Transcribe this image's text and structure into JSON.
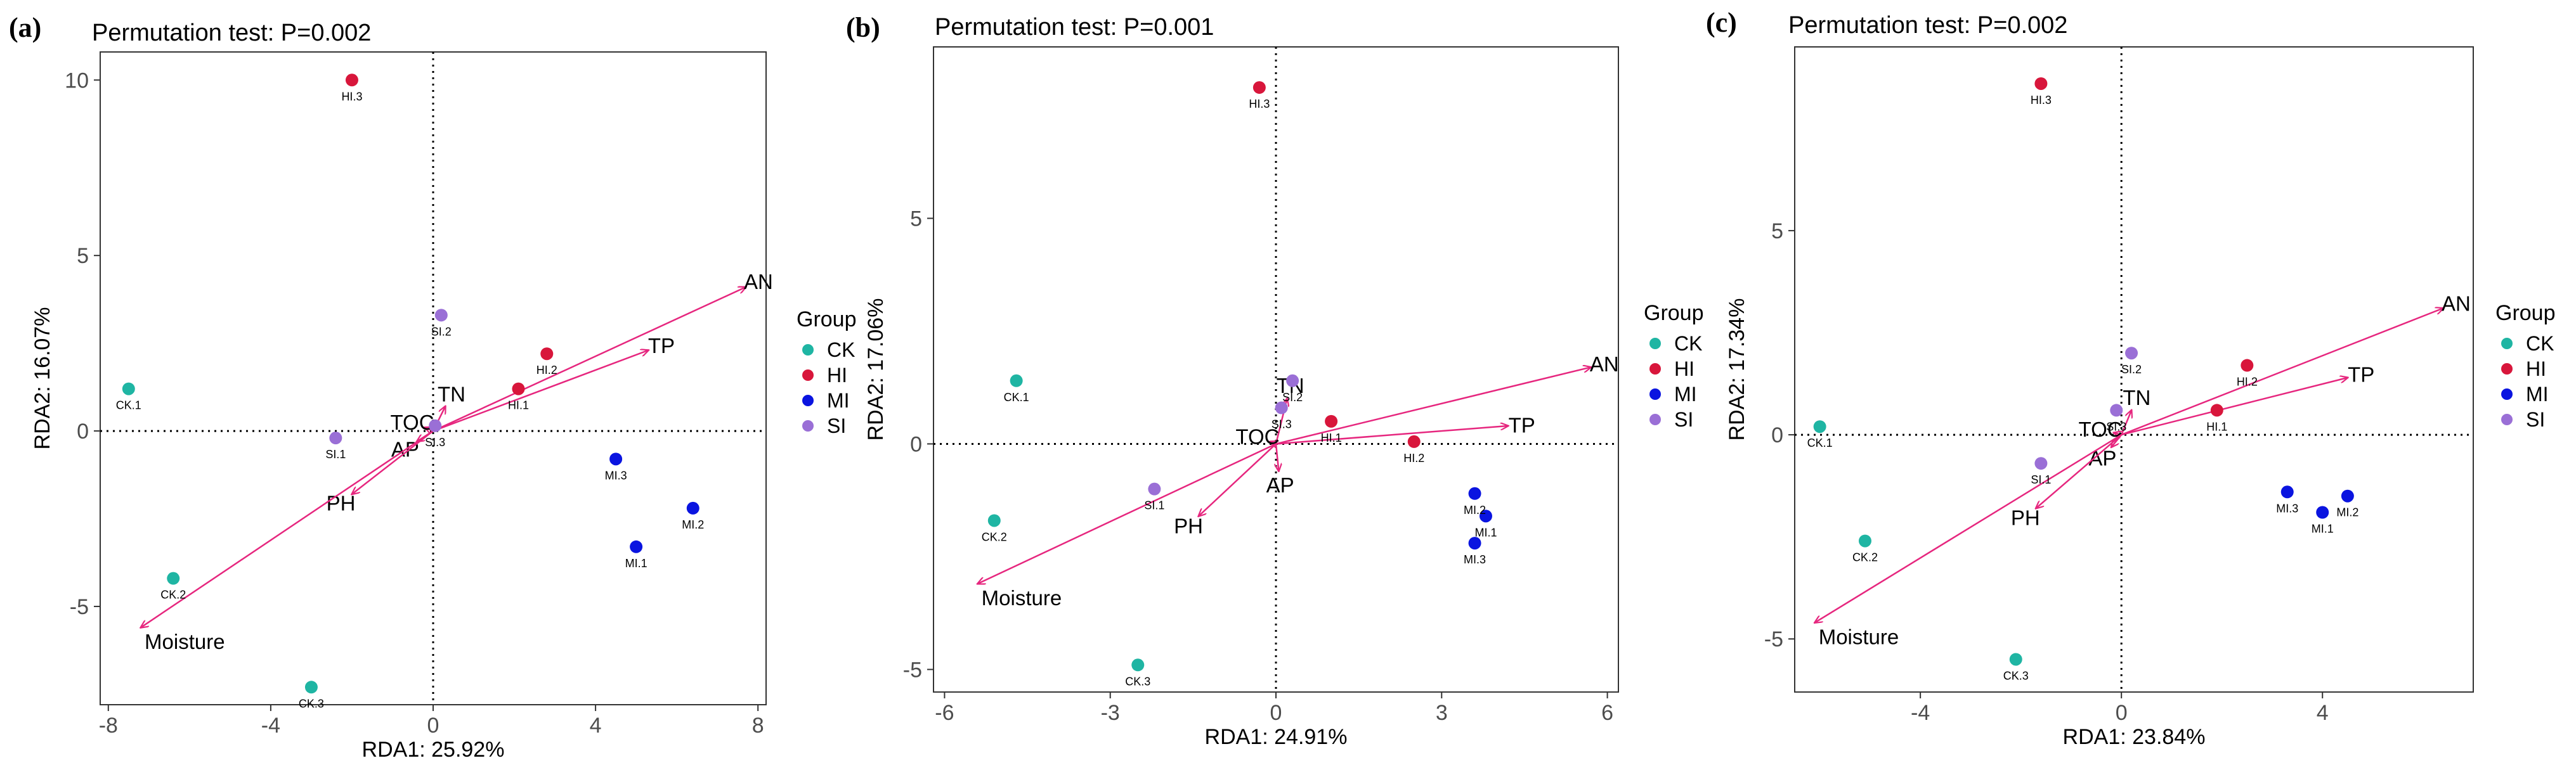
{
  "chart_data": [
    {
      "type": "scatter",
      "panel_label": "(a)",
      "title": "Permutation test: P=0.002",
      "xlabel": "RDA1: 25.92%",
      "ylabel": "RDA2: 16.07%",
      "xlim": [
        -8.2,
        8.2
      ],
      "ylim": [
        -7.8,
        10.8
      ],
      "xticks": [
        -8,
        -4,
        0,
        4,
        8
      ],
      "yticks": [
        -5,
        0,
        5,
        10
      ],
      "grid": false,
      "reference_lines": "dotted lines at x=0 and y=0",
      "legend_position": "right",
      "legend_title": "Group",
      "groups": [
        {
          "name": "CK",
          "color": "#1fb5a3"
        },
        {
          "name": "HI",
          "color": "#d8163b"
        },
        {
          "name": "MI",
          "color": "#0a14e0"
        },
        {
          "name": "SI",
          "color": "#9a6fd6"
        }
      ],
      "points": [
        {
          "label": "CK.1",
          "group": "CK",
          "x": -7.5,
          "y": 1.2
        },
        {
          "label": "CK.2",
          "group": "CK",
          "x": -6.4,
          "y": -4.2
        },
        {
          "label": "CK.3",
          "group": "CK",
          "x": -3.0,
          "y": -7.3
        },
        {
          "label": "HI.1",
          "group": "HI",
          "x": 2.1,
          "y": 1.2
        },
        {
          "label": "HI.2",
          "group": "HI",
          "x": 2.8,
          "y": 2.2
        },
        {
          "label": "HI.3",
          "group": "HI",
          "x": -2.0,
          "y": 10.0
        },
        {
          "label": "MI.1",
          "group": "MI",
          "x": 5.0,
          "y": -3.3
        },
        {
          "label": "MI.2",
          "group": "MI",
          "x": 6.4,
          "y": -2.2
        },
        {
          "label": "MI.3",
          "group": "MI",
          "x": 4.5,
          "y": -0.8
        },
        {
          "label": "SI.1",
          "group": "SI",
          "x": -2.4,
          "y": -0.2
        },
        {
          "label": "SI.2",
          "group": "SI",
          "x": 0.2,
          "y": 3.3
        },
        {
          "label": "SI.3",
          "group": "SI",
          "x": 0.05,
          "y": 0.15
        }
      ],
      "arrows": [
        {
          "label": "AN",
          "x": 7.7,
          "y": 4.1
        },
        {
          "label": "TP",
          "x": 5.3,
          "y": 2.3
        },
        {
          "label": "TN",
          "x": 0.3,
          "y": 0.7
        },
        {
          "label": "TOC",
          "x": -0.2,
          "y": 0.1
        },
        {
          "label": "AP",
          "x": -0.4,
          "y": -0.3
        },
        {
          "label": "PH",
          "x": -2.0,
          "y": -1.8
        },
        {
          "label": "Moisture",
          "x": -7.2,
          "y": -5.6
        }
      ]
    },
    {
      "type": "scatter",
      "panel_label": "(b)",
      "title": "Permutation test: P=0.001",
      "xlabel": "RDA1: 24.91%",
      "ylabel": "RDA2: 17.06%",
      "xlim": [
        -6.2,
        6.2
      ],
      "ylim": [
        -5.5,
        8.8
      ],
      "xticks": [
        -6,
        -3,
        0,
        3,
        6
      ],
      "yticks": [
        -5,
        0,
        5
      ],
      "grid": false,
      "reference_lines": "dotted lines at x=0 and y=0",
      "legend_position": "right",
      "legend_title": "Group",
      "groups": [
        {
          "name": "CK",
          "color": "#1fb5a3"
        },
        {
          "name": "HI",
          "color": "#d8163b"
        },
        {
          "name": "MI",
          "color": "#0a14e0"
        },
        {
          "name": "SI",
          "color": "#9a6fd6"
        }
      ],
      "points": [
        {
          "label": "CK.1",
          "group": "CK",
          "x": -4.7,
          "y": 1.4
        },
        {
          "label": "CK.2",
          "group": "CK",
          "x": -5.1,
          "y": -1.7
        },
        {
          "label": "CK.3",
          "group": "CK",
          "x": -2.5,
          "y": -4.9
        },
        {
          "label": "HI.1",
          "group": "HI",
          "x": 1.0,
          "y": 0.5
        },
        {
          "label": "HI.2",
          "group": "HI",
          "x": 2.5,
          "y": 0.05
        },
        {
          "label": "HI.3",
          "group": "HI",
          "x": -0.3,
          "y": 7.9
        },
        {
          "label": "MI.1",
          "group": "MI",
          "x": 3.8,
          "y": -1.6
        },
        {
          "label": "MI.2",
          "group": "MI",
          "x": 3.6,
          "y": -1.1
        },
        {
          "label": "MI.3",
          "group": "MI",
          "x": 3.6,
          "y": -2.2
        },
        {
          "label": "SI.1",
          "group": "SI",
          "x": -2.2,
          "y": -1.0
        },
        {
          "label": "SI.2",
          "group": "SI",
          "x": 0.3,
          "y": 1.4
        },
        {
          "label": "SI.3",
          "group": "SI",
          "x": 0.1,
          "y": 0.8
        }
      ],
      "arrows": [
        {
          "label": "AN",
          "x": 5.7,
          "y": 1.7
        },
        {
          "label": "TP",
          "x": 4.2,
          "y": 0.4
        },
        {
          "label": "TN",
          "x": 0.2,
          "y": 1.0
        },
        {
          "label": "TOC",
          "x": -0.1,
          "y": 0.05
        },
        {
          "label": "AP",
          "x": 0.05,
          "y": -0.6
        },
        {
          "label": "PH",
          "x": -1.4,
          "y": -1.6
        },
        {
          "label": "Moisture",
          "x": -5.4,
          "y": -3.1
        }
      ]
    },
    {
      "type": "scatter",
      "panel_label": "(c)",
      "title": "Permutation test: P=0.002",
      "xlabel": "RDA1: 23.84%",
      "ylabel": "RDA2: 17.34%",
      "xlim": [
        -6.5,
        7.0
      ],
      "ylim": [
        -6.3,
        9.5
      ],
      "xticks": [
        -4,
        0,
        4
      ],
      "yticks": [
        -5,
        0,
        5
      ],
      "grid": false,
      "reference_lines": "dotted lines at x=0 and y=0",
      "legend_position": "right",
      "legend_title": "Group",
      "groups": [
        {
          "name": "CK",
          "color": "#1fb5a3"
        },
        {
          "name": "HI",
          "color": "#d8163b"
        },
        {
          "name": "MI",
          "color": "#0a14e0"
        },
        {
          "name": "SI",
          "color": "#9a6fd6"
        }
      ],
      "points": [
        {
          "label": "CK.1",
          "group": "CK",
          "x": -6.0,
          "y": 0.2
        },
        {
          "label": "CK.2",
          "group": "CK",
          "x": -5.1,
          "y": -2.6
        },
        {
          "label": "CK.3",
          "group": "CK",
          "x": -2.1,
          "y": -5.5
        },
        {
          "label": "HI.1",
          "group": "HI",
          "x": 1.9,
          "y": 0.6
        },
        {
          "label": "HI.2",
          "group": "HI",
          "x": 2.5,
          "y": 1.7
        },
        {
          "label": "HI.3",
          "group": "HI",
          "x": -1.6,
          "y": 8.6
        },
        {
          "label": "MI.1",
          "group": "MI",
          "x": 4.0,
          "y": -1.9
        },
        {
          "label": "MI.2",
          "group": "MI",
          "x": 4.5,
          "y": -1.5
        },
        {
          "label": "MI.3",
          "group": "MI",
          "x": 3.3,
          "y": -1.4
        },
        {
          "label": "SI.1",
          "group": "SI",
          "x": -1.6,
          "y": -0.7
        },
        {
          "label": "SI.2",
          "group": "SI",
          "x": 0.2,
          "y": 2.0
        },
        {
          "label": "SI.3",
          "group": "SI",
          "x": -0.1,
          "y": 0.6
        }
      ],
      "arrows": [
        {
          "label": "AN",
          "x": 6.4,
          "y": 3.1
        },
        {
          "label": "TP",
          "x": 4.5,
          "y": 1.4
        },
        {
          "label": "TN",
          "x": 0.2,
          "y": 0.6
        },
        {
          "label": "TOC",
          "x": -0.15,
          "y": 0.05
        },
        {
          "label": "AP",
          "x": -0.2,
          "y": -0.3
        },
        {
          "label": "PH",
          "x": -1.7,
          "y": -1.8
        },
        {
          "label": "Moisture",
          "x": -6.1,
          "y": -4.6
        }
      ]
    }
  ]
}
